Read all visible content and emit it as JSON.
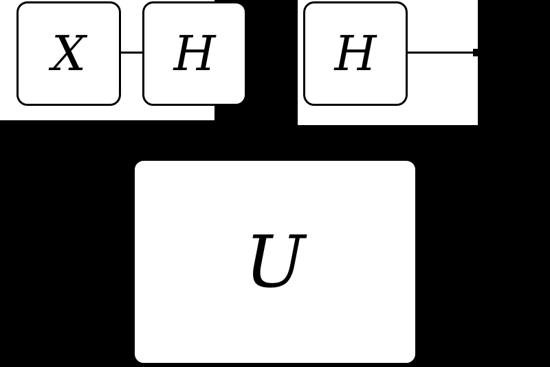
{
  "diagram": {
    "gates": [
      {
        "id": "x",
        "label": "X"
      },
      {
        "id": "h1",
        "label": "H"
      },
      {
        "id": "h2",
        "label": "H"
      },
      {
        "id": "u",
        "label": "U"
      }
    ],
    "colors": {
      "background": "#000000",
      "gate_fill": "#ffffff",
      "gate_border": "#000000",
      "wire": "#000000"
    }
  }
}
